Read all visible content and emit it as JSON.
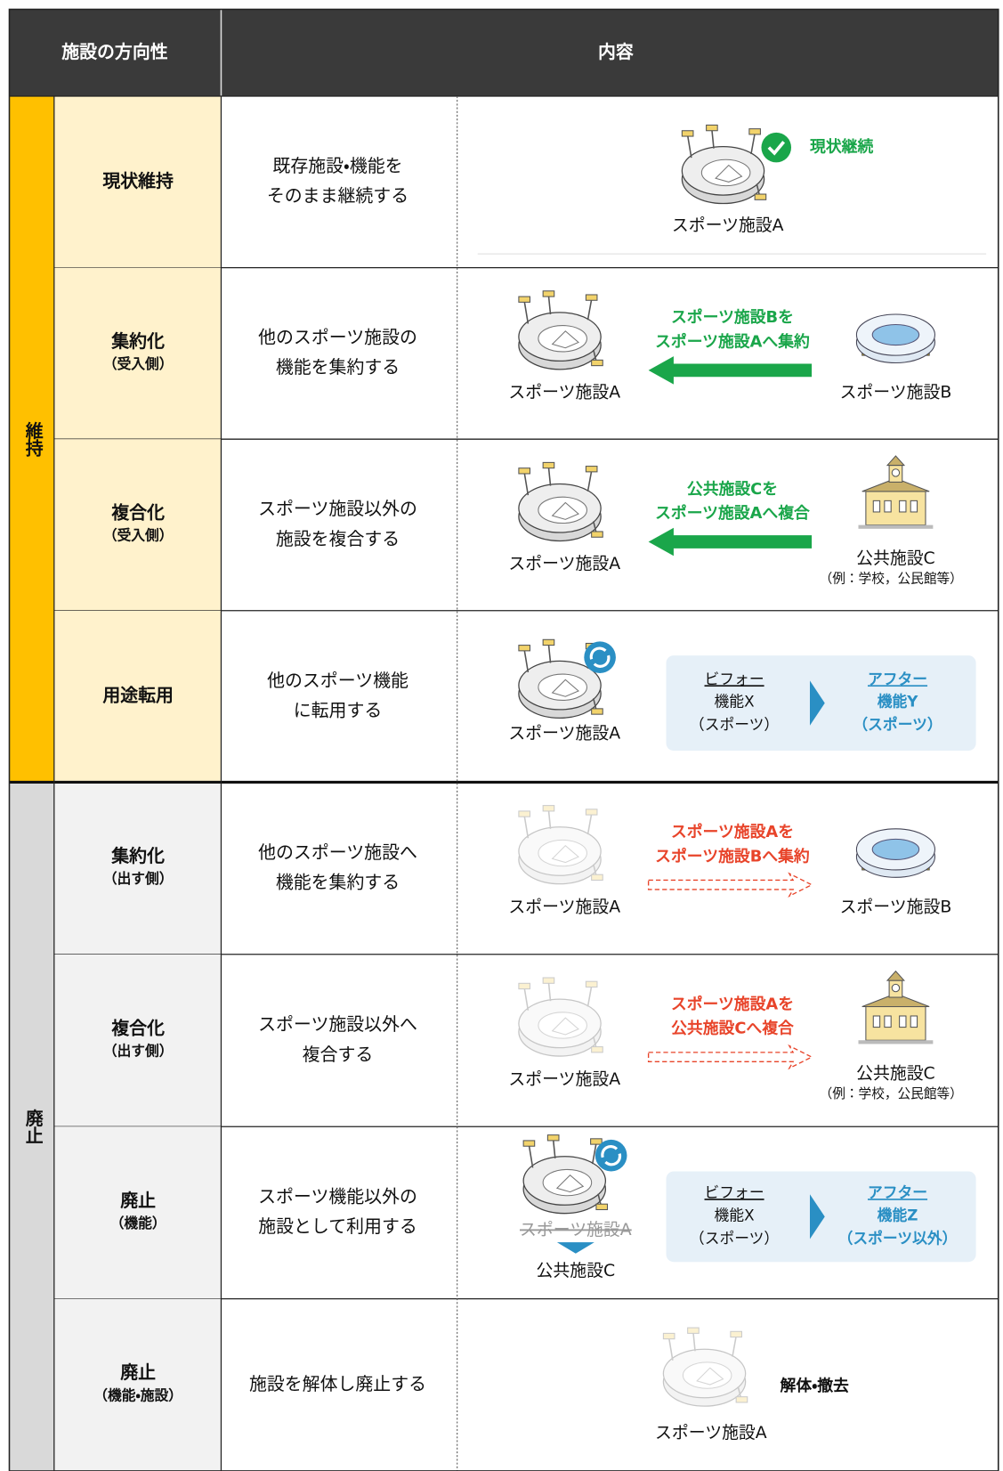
{
  "header": {
    "direction": "施設の方向性",
    "content": "内容"
  },
  "groups": [
    {
      "label": "維持",
      "rows": [
        {
          "name": "現状維持",
          "description": [
            "既存施設・機能を",
            "そのまま継続する"
          ],
          "diagram": {
            "facility": "スポーツ施設A",
            "status": "現状継続"
          }
        },
        {
          "name": "集約化",
          "sub": "（受入側）",
          "description": [
            "他のスポーツ施設の",
            "機能を集約する"
          ],
          "diagram": {
            "left": "スポーツ施設A",
            "right": "スポーツ施設B",
            "arrow_text": [
              "スポーツ施設Bを",
              "スポーツ施設Aへ集約"
            ]
          }
        },
        {
          "name": "複合化",
          "sub": "（受入側）",
          "description": [
            "スポーツ施設以外の",
            "施設を複合する"
          ],
          "diagram": {
            "left": "スポーツ施設A",
            "right": "公共施設C",
            "right_note": "（例：学校，公民館等）",
            "arrow_text": [
              "公共施設Cを",
              "スポーツ施設Aへ複合"
            ]
          }
        },
        {
          "name": "用途転用",
          "description": [
            "他のスポーツ機能",
            "に転用する"
          ],
          "diagram": {
            "facility": "スポーツ施設A",
            "before": {
              "heading": "ビフォー",
              "function": "機能X",
              "kind": "（スポーツ）"
            },
            "after": {
              "heading": "アフター",
              "function": "機能Y",
              "kind": "（スポーツ）"
            }
          }
        }
      ]
    },
    {
      "label": "廃止",
      "rows": [
        {
          "name": "集約化",
          "sub": "（出す側）",
          "description": [
            "他のスポーツ施設へ",
            "機能を集約する"
          ],
          "diagram": {
            "left": "スポーツ施設A",
            "right": "スポーツ施設B",
            "arrow_text": [
              "スポーツ施設Aを",
              "スポーツ施設Bへ集約"
            ]
          }
        },
        {
          "name": "複合化",
          "sub": "（出す側）",
          "description": [
            "スポーツ施設以外へ",
            "複合する"
          ],
          "diagram": {
            "left": "スポーツ施設A",
            "right": "公共施設C",
            "right_note": "（例：学校，公民館等）",
            "arrow_text": [
              "スポーツ施設Aを",
              "公共施設Cへ複合"
            ]
          }
        },
        {
          "name": "廃止",
          "sub": "（機能）",
          "description": [
            "スポーツ機能以外の",
            "施設として利用する"
          ],
          "diagram": {
            "facility": "スポーツ施設A",
            "new_facility": "公共施設C",
            "before": {
              "heading": "ビフォー",
              "function": "機能X",
              "kind": "（スポーツ）"
            },
            "after": {
              "heading": "アフター",
              "function": "機能Z",
              "kind": "（スポーツ以外）"
            }
          }
        },
        {
          "name": "廃止",
          "sub": "（機能・施設）",
          "description": [
            "施設を解体し廃止する"
          ],
          "diagram": {
            "facility": "スポーツ施設A",
            "status": "解体・撤去"
          }
        }
      ]
    }
  ]
}
